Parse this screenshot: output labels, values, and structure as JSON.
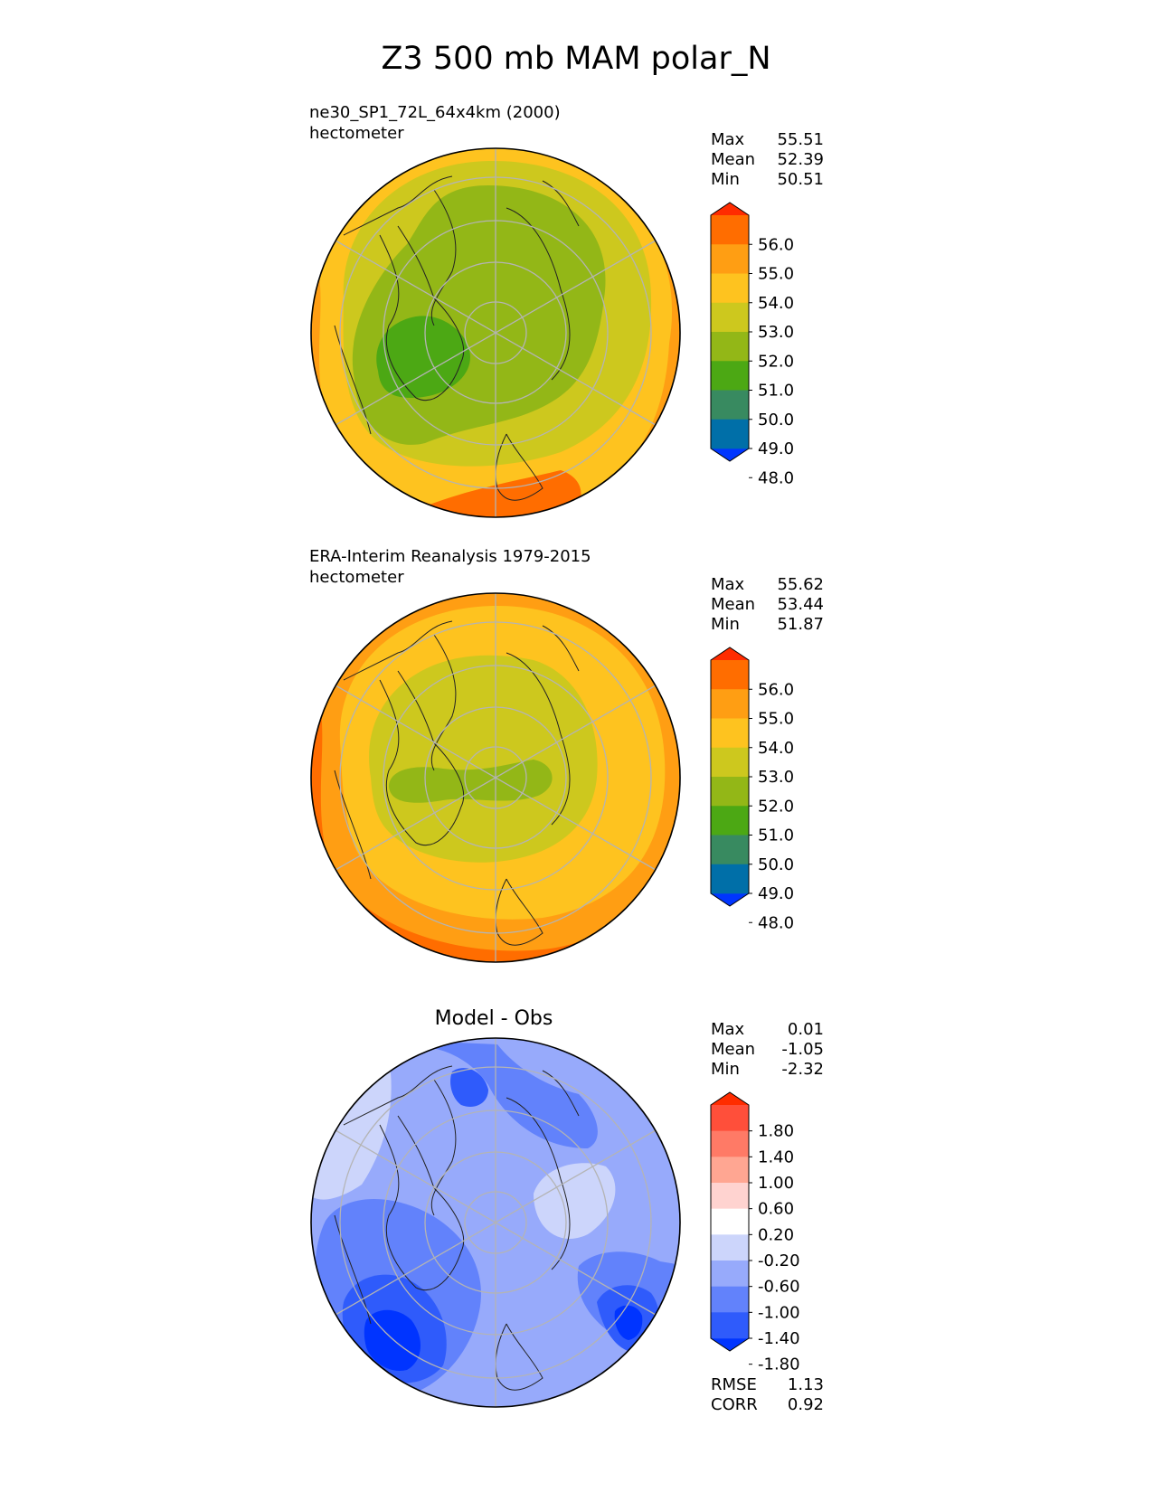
{
  "title": "Z3 500 mb MAM polar_N",
  "colors": {
    "abs_levels": [
      "#0035ff",
      "#006fa8",
      "#388a60",
      "#4ca814",
      "#93b717",
      "#cdc81e",
      "#fec31f",
      "#ff9e13",
      "#ff6d00",
      "#ff2c00"
    ],
    "diff_levels": [
      "#0034ff",
      "#2f5bfb",
      "#6282fb",
      "#97aafb",
      "#ccd5fb",
      "#ffffff",
      "#ffd3d0",
      "#ffa692",
      "#ff7a66",
      "#ff4f3a",
      "#ff2c00"
    ],
    "graticule": "#b4b4b4",
    "coast": "#222222"
  },
  "chart_data": [
    {
      "type": "heatmap",
      "projection": "north-polar-stereographic",
      "title_left": "ne30_SP1_72L_64x4km (2000)",
      "units": "hectometer",
      "stats": {
        "max_label": "Max",
        "max": "55.51",
        "mean_label": "Mean",
        "mean": "52.39",
        "min_label": "Min",
        "min": "50.51"
      },
      "colorbar_ticks": [
        "56.0",
        "55.0",
        "54.0",
        "53.0",
        "52.0",
        "51.0",
        "50.0",
        "49.0",
        "48.0"
      ],
      "field": {
        "pole": 51.6,
        "amplitude": 0.9,
        "rim": 55.3,
        "lobe_angle_deg": 205,
        "rim_spread": 0.6
      }
    },
    {
      "type": "heatmap",
      "projection": "north-polar-stereographic",
      "title_left": "ERA-Interim Reanalysis 1979-2015",
      "units": "hectometer",
      "stats": {
        "max_label": "Max",
        "max": "55.62",
        "mean_label": "Mean",
        "mean": "53.44",
        "min_label": "Min",
        "min": "51.87"
      },
      "colorbar_ticks": [
        "56.0",
        "55.0",
        "54.0",
        "53.0",
        "52.0",
        "51.0",
        "50.0",
        "49.0",
        "48.0"
      ],
      "field": {
        "pole": 52.4,
        "amplitude": 0.7,
        "rim": 55.5,
        "lobe_angle_deg": 200,
        "rim_spread": 0.5
      }
    },
    {
      "type": "heatmap",
      "projection": "north-polar-stereographic",
      "title_center": "Model - Obs",
      "stats": {
        "max_label": "Max",
        "max": "0.01",
        "mean_label": "Mean",
        "mean": "-1.05",
        "min_label": "Min",
        "min": "-2.32"
      },
      "colorbar_ticks": [
        "1.80",
        "1.40",
        "1.00",
        "0.60",
        "0.20",
        "-0.20",
        "-0.60",
        "-1.00",
        "-1.40",
        "-1.80"
      ],
      "metrics": {
        "rmse_label": "RMSE",
        "rmse": "1.13",
        "corr_label": "CORR",
        "corr": "0.92"
      },
      "field": {
        "mean": -1.05,
        "min": -2.32,
        "max": 0.01
      }
    }
  ]
}
